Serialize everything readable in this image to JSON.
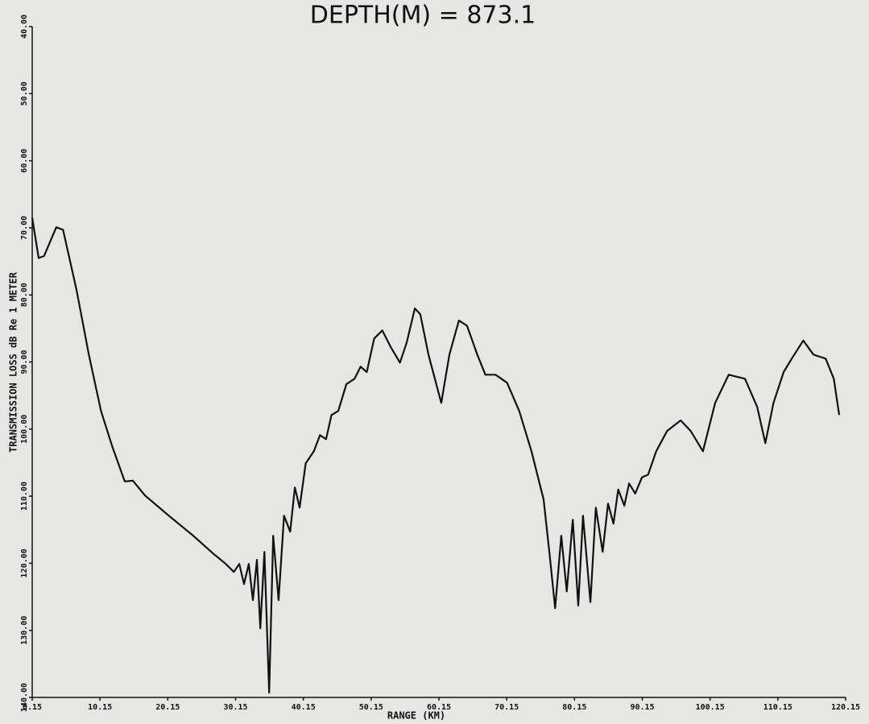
{
  "chart_data": {
    "type": "line",
    "title": "DEPTH(M) = 873.1",
    "xlabel": "RANGE (KM)",
    "ylabel": "TRANSMISSION LOSS dB Re 1 METER",
    "xlim": [
      0.15,
      120.15
    ],
    "xticks": [
      0.15,
      10.15,
      20.15,
      30.15,
      40.15,
      50.15,
      60.15,
      70.15,
      80.15,
      90.15,
      100.15,
      110.15,
      120.15
    ],
    "ylim": [
      140,
      40
    ],
    "yticks": [
      {
        "value": 40,
        "label": "40.00"
      },
      {
        "value": 50,
        "label": "50.00"
      },
      {
        "value": 60,
        "label": "60.00"
      },
      {
        "value": 70,
        "label": "70.00"
      },
      {
        "value": 80,
        "label": "80.00"
      },
      {
        "value": 90,
        "label": "90.00"
      },
      {
        "value": 100,
        "label": "100.00"
      },
      {
        "value": 110,
        "label": "110.00"
      },
      {
        "value": 120,
        "label": "120.00"
      },
      {
        "value": 130,
        "label": "130.00"
      },
      {
        "value": 140,
        "label": "140.00"
      }
    ],
    "inverted_y": true,
    "grid": false,
    "series": [
      {
        "color": "#111111",
        "x": [
          0.15,
          1.1,
          1.9,
          3.7,
          4.7,
          6.7,
          8.5,
          10.3,
          12.0,
          13.8,
          15.0,
          16.8,
          20.3,
          23.9,
          26.9,
          28.7,
          29.9,
          30.7,
          31.4,
          32.1,
          32.7,
          33.3,
          33.8,
          34.4,
          35.1,
          35.7,
          36.5,
          37.3,
          38.2,
          38.9,
          39.6,
          40.5,
          41.7,
          42.6,
          43.5,
          44.3,
          45.3,
          46.5,
          47.7,
          48.6,
          49.5,
          50.6,
          51.8,
          53.0,
          54.4,
          55.4,
          56.6,
          57.4,
          58.6,
          60.5,
          61.7,
          63.1,
          64.3,
          65.8,
          67.0,
          68.5,
          70.2,
          72.0,
          73.8,
          75.6,
          76.5,
          77.3,
          78.2,
          79.0,
          79.9,
          80.7,
          81.4,
          82.5,
          83.3,
          84.3,
          85.1,
          85.9,
          86.6,
          87.5,
          88.2,
          89.1,
          90.1,
          91.0,
          92.2,
          93.8,
          95.8,
          97.3,
          99.1,
          100.9,
          102.9,
          105.3,
          107.1,
          108.3,
          109.5,
          111.0,
          112.2,
          113.9,
          115.4,
          117.2,
          118.4,
          119.2
        ],
        "values": [
          68.5,
          74.5,
          74.2,
          69.9,
          70.3,
          79.3,
          88.9,
          97.3,
          102.7,
          107.8,
          107.7,
          109.9,
          112.9,
          115.9,
          118.6,
          120.1,
          121.3,
          120.1,
          123.1,
          120.1,
          125.5,
          119.5,
          129.7,
          118.3,
          139.3,
          115.9,
          125.5,
          112.9,
          115.3,
          108.7,
          111.7,
          105.1,
          103.3,
          100.9,
          101.5,
          97.9,
          97.3,
          93.3,
          92.5,
          90.7,
          91.5,
          86.5,
          85.3,
          87.7,
          90.1,
          87.1,
          82.0,
          82.9,
          88.9,
          96.1,
          88.9,
          83.8,
          84.6,
          88.9,
          91.9,
          91.9,
          93.1,
          97.3,
          103.3,
          110.5,
          118.9,
          126.7,
          115.9,
          124.2,
          113.5,
          126.3,
          112.9,
          125.8,
          111.7,
          118.3,
          111.1,
          114.1,
          109.0,
          111.4,
          108.1,
          109.6,
          107.2,
          106.8,
          103.3,
          100.3,
          98.7,
          100.3,
          103.3,
          96.1,
          91.9,
          92.5,
          96.7,
          102.1,
          96.1,
          91.5,
          89.5,
          86.8,
          88.9,
          89.5,
          92.5,
          97.9
        ]
      }
    ]
  }
}
